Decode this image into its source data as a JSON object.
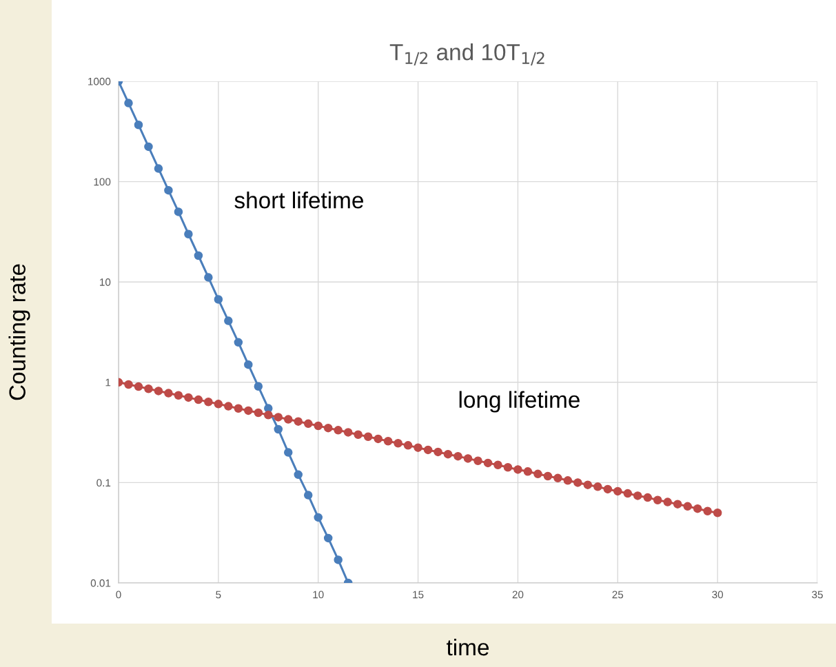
{
  "chart_data": {
    "type": "line",
    "title": "T$_{1/2}$ and 10T$_{1/2}$",
    "xlabel": "time",
    "ylabel": "Counting rate",
    "log": "y",
    "grid": true,
    "marker": "circle",
    "line_style": "solid",
    "xlim": [
      0,
      35
    ],
    "xticks": [
      0,
      5,
      10,
      15,
      20,
      25,
      30,
      35
    ],
    "ylim": [
      0.01,
      1000
    ],
    "yticks": [
      {
        "value": 0.01,
        "label": "0.01"
      },
      {
        "value": 0.1,
        "label": "0.1"
      },
      1,
      10,
      100,
      1000
    ],
    "series": [
      {
        "name": "short lifetime",
        "color": "#4a7ebb",
        "x": [
          0,
          0.5,
          1,
          1.5,
          2,
          2.5,
          3,
          3.5,
          4,
          4.5,
          5,
          5.5,
          6,
          6.5,
          7,
          7.5,
          8,
          8.5,
          9,
          9.5,
          10,
          10.5,
          11,
          11.5
        ],
        "values": [
          1000,
          607,
          368,
          223,
          135,
          82,
          50,
          30,
          18.3,
          11.1,
          6.7,
          4.1,
          2.5,
          1.5,
          0.91,
          0.55,
          0.34,
          0.2,
          0.12,
          0.075,
          0.045,
          0.028,
          0.017,
          0.01
        ]
      },
      {
        "name": "long lifetime",
        "color": "#be4b48",
        "x": [
          0,
          0.5,
          1,
          1.5,
          2,
          2.5,
          3,
          3.5,
          4,
          4.5,
          5,
          5.5,
          6,
          6.5,
          7,
          7.5,
          8,
          8.5,
          9,
          9.5,
          10,
          10.5,
          11,
          11.5,
          12,
          12.5,
          13,
          13.5,
          14,
          14.5,
          15,
          15.5,
          16,
          16.5,
          17,
          17.5,
          18,
          18.5,
          19,
          19.5,
          20,
          20.5,
          21,
          21.5,
          22,
          22.5,
          23,
          23.5,
          24,
          24.5,
          25,
          25.5,
          26,
          26.5,
          27,
          27.5,
          28,
          28.5,
          29,
          29.5,
          30
        ],
        "values": [
          1,
          0.951,
          0.905,
          0.861,
          0.819,
          0.779,
          0.741,
          0.705,
          0.67,
          0.638,
          0.607,
          0.577,
          0.549,
          0.522,
          0.497,
          0.472,
          0.449,
          0.427,
          0.407,
          0.387,
          0.368,
          0.35,
          0.333,
          0.317,
          0.301,
          0.287,
          0.273,
          0.259,
          0.247,
          0.235,
          0.223,
          0.212,
          0.202,
          0.192,
          0.183,
          0.174,
          0.165,
          0.157,
          0.15,
          0.142,
          0.135,
          0.129,
          0.122,
          0.116,
          0.111,
          0.105,
          0.1,
          0.095,
          0.091,
          0.086,
          0.082,
          0.078,
          0.074,
          0.071,
          0.067,
          0.064,
          0.061,
          0.058,
          0.055,
          0.052,
          0.05
        ]
      }
    ]
  }
}
